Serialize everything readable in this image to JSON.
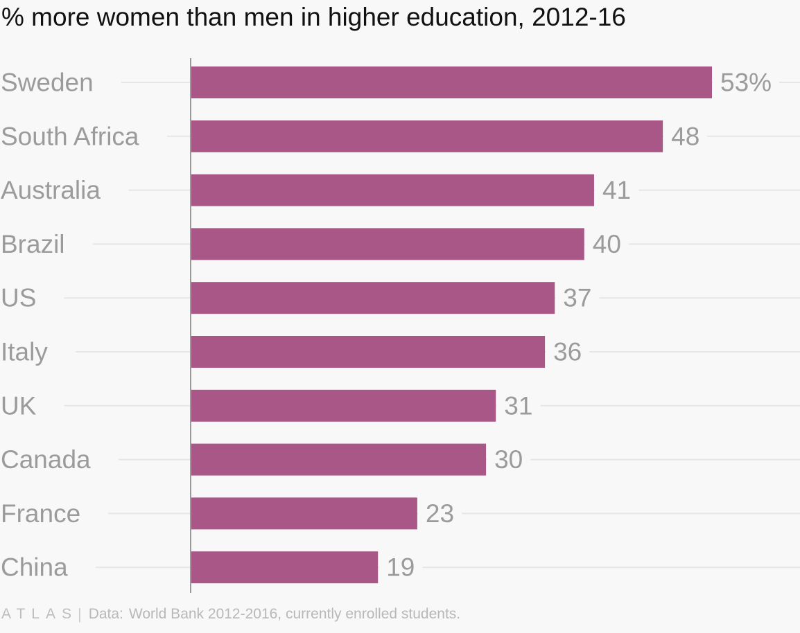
{
  "title": "% more women than men in higher education, 2012-16",
  "footer": {
    "logo": "ATLAS",
    "source_label": "Data:",
    "source": "World Bank 2012-2016, currently enrolled students."
  },
  "colors": {
    "bar": "#a95787",
    "label": "#9b9b9b",
    "grid": "#e6e6e6",
    "axis": "#9a9a9a"
  },
  "chart_data": {
    "type": "bar",
    "orientation": "horizontal",
    "title": "% more women than men in higher education, 2012-16",
    "categories": [
      "Sweden",
      "South Africa",
      "Australia",
      "Brazil",
      "US",
      "Italy",
      "UK",
      "Canada",
      "France",
      "China"
    ],
    "values": [
      53,
      48,
      41,
      40,
      37,
      36,
      31,
      30,
      23,
      19
    ],
    "value_labels": [
      "53%",
      "48",
      "41",
      "40",
      "37",
      "36",
      "31",
      "30",
      "23",
      "19"
    ],
    "xlim": [
      0,
      60
    ],
    "xlabel": "",
    "ylabel": "",
    "grid": true,
    "legend": "none"
  }
}
